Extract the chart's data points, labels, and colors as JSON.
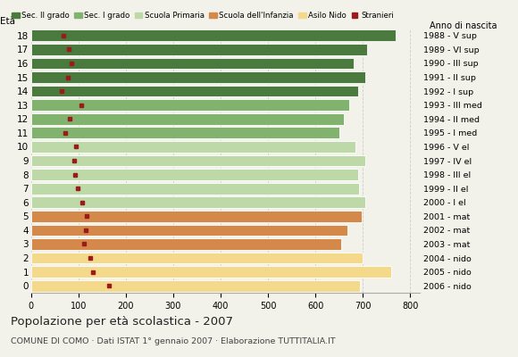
{
  "ages": [
    18,
    17,
    16,
    15,
    14,
    13,
    12,
    11,
    10,
    9,
    8,
    7,
    6,
    5,
    4,
    3,
    2,
    1,
    0
  ],
  "bar_values": [
    770,
    710,
    680,
    705,
    690,
    672,
    660,
    650,
    685,
    705,
    690,
    693,
    705,
    698,
    668,
    655,
    700,
    760,
    695
  ],
  "stranieri_values": [
    68,
    80,
    85,
    78,
    65,
    105,
    82,
    72,
    95,
    90,
    92,
    98,
    108,
    118,
    115,
    112,
    125,
    130,
    165
  ],
  "anno_nascita": [
    "1988 - V sup",
    "1989 - VI sup",
    "1990 - III sup",
    "1991 - II sup",
    "1992 - I sup",
    "1993 - III med",
    "1994 - II med",
    "1995 - I med",
    "1996 - V el",
    "1997 - IV el",
    "1998 - III el",
    "1999 - II el",
    "2000 - I el",
    "2001 - mat",
    "2002 - mat",
    "2003 - mat",
    "2004 - nido",
    "2005 - nido",
    "2006 - nido"
  ],
  "bar_colors": [
    "#4a7a3e",
    "#4a7a3e",
    "#4a7a3e",
    "#4a7a3e",
    "#4a7a3e",
    "#82b36e",
    "#82b36e",
    "#82b36e",
    "#bdd9a8",
    "#bdd9a8",
    "#bdd9a8",
    "#bdd9a8",
    "#bdd9a8",
    "#d4894a",
    "#d4894a",
    "#d4894a",
    "#f5d98a",
    "#f5d98a",
    "#f5d98a"
  ],
  "stranieri_color": "#9b1a1a",
  "bg_color": "#f2f2ea",
  "grid_color": "#cccccc",
  "title": "Popolazione per età scolastica - 2007",
  "subtitle": "COMUNE DI COMO · Dati ISTAT 1° gennaio 2007 · Elaborazione TUTTITALIA.IT",
  "xlim": [
    0,
    820
  ],
  "xticks": [
    0,
    100,
    200,
    300,
    400,
    500,
    600,
    700,
    800
  ],
  "legend_labels": [
    "Sec. II grado",
    "Sec. I grado",
    "Scuola Primaria",
    "Scuola dell'Infanzia",
    "Asilo Nido",
    "Stranieri"
  ],
  "legend_colors": [
    "#4a7a3e",
    "#82b36e",
    "#bdd9a8",
    "#d4894a",
    "#f5d98a",
    "#9b1a1a"
  ]
}
